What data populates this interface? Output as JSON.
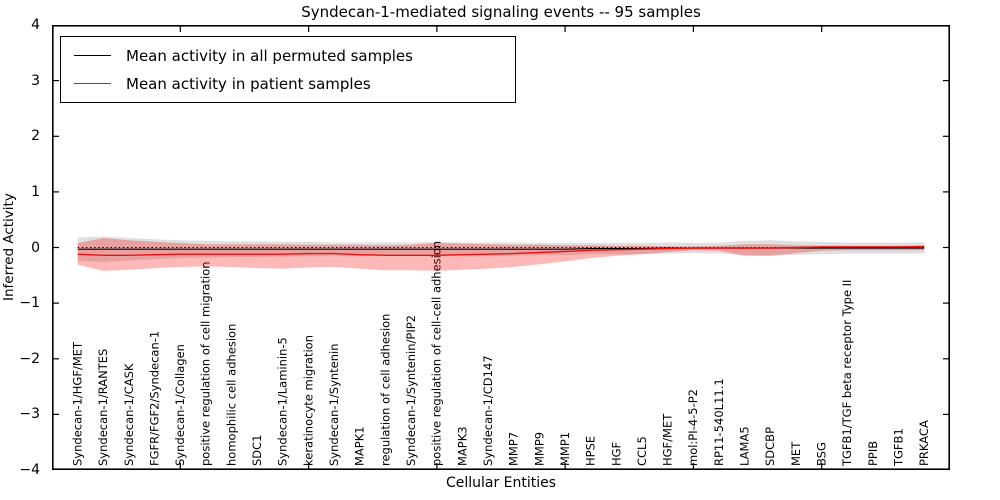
{
  "title": "Syndecan-1-mediated signaling events -- 95 samples",
  "axes": {
    "x_label": "Cellular Entities",
    "y_label": "Inferred Activity",
    "y_ticks": [
      "4",
      "3",
      "2",
      "1",
      "0",
      "−1",
      "−2",
      "−3",
      "−4"
    ]
  },
  "legend": {
    "items": [
      {
        "label": "Mean activity in all permuted samples",
        "color": "#000000"
      },
      {
        "label": "Mean activity in patient samples",
        "color": "#ee1111"
      }
    ]
  },
  "colors": {
    "permuted_line": "#000000",
    "patient_line": "#ee1111",
    "permuted_band": "rgba(0,0,0,0.12)",
    "patient_band": "rgba(255,0,0,0.28)",
    "axis": "#000000"
  },
  "chart_data": {
    "type": "line",
    "title": "Syndecan-1-mediated signaling events -- 95 samples",
    "xlabel": "Cellular Entities",
    "ylabel": "Inferred Activity",
    "ylim": [
      -4,
      4
    ],
    "xlim": [
      0,
      35
    ],
    "grid": false,
    "legend_position": "upper left",
    "zero_reference_line": 0,
    "x_major_tick_step": 5,
    "categories": [
      "Syndecan-1/HGF/MET",
      "Syndecan-1/RANTES",
      "Syndecan-1/CASK",
      "FGFR/FGF2/Syndecan-1",
      "Syndecan-1/Collagen",
      "positive regulation of cell migration",
      "homophilic cell adhesion",
      "SDC1",
      "Syndecan-1/Laminin-5",
      "keratinocyte migration",
      "Syndecan-1/Syntenin",
      "MAPK1",
      "regulation of cell adhesion",
      "Syndecan-1/Syntenin/PIP2",
      "positive regulation of cell-cell adhesion",
      "MAPK3",
      "Syndecan-1/CD147",
      "MMP7",
      "MMP9",
      "MMP1",
      "HPSE",
      "HGF",
      "CCL5",
      "HGF/MET",
      "mol:PI-4-5-P2",
      "RP11-540L11.1",
      "LAMA5",
      "SDCBP",
      "MET",
      "BSG",
      "TGFB1/TGF beta receptor Type II",
      "PPIB",
      "TGFB1",
      "PRKACA"
    ],
    "series": [
      {
        "name": "Mean activity in all permuted samples",
        "color": "#000000",
        "width": 1.1,
        "values": [
          -0.03,
          -0.03,
          -0.03,
          -0.03,
          -0.03,
          -0.03,
          -0.03,
          -0.03,
          -0.03,
          -0.03,
          -0.03,
          -0.03,
          -0.03,
          -0.03,
          -0.03,
          -0.03,
          -0.03,
          -0.03,
          -0.03,
          -0.03,
          -0.02,
          -0.02,
          -0.02,
          -0.01,
          -0.01,
          -0.01,
          -0.01,
          -0.01,
          -0.01,
          -0.01,
          -0.01,
          -0.01,
          -0.01,
          -0.01
        ]
      },
      {
        "name": "Mean activity in patient samples",
        "color": "#ee1111",
        "width": 1.4,
        "values": [
          -0.12,
          -0.14,
          -0.14,
          -0.13,
          -0.12,
          -0.12,
          -0.12,
          -0.12,
          -0.12,
          -0.11,
          -0.11,
          -0.13,
          -0.14,
          -0.14,
          -0.14,
          -0.13,
          -0.12,
          -0.11,
          -0.09,
          -0.07,
          -0.05,
          -0.04,
          -0.03,
          -0.02,
          -0.01,
          -0.01,
          -0.01,
          -0.01,
          0.0,
          0.01,
          0.01,
          0.01,
          0.01,
          0.02
        ]
      }
    ],
    "bands": [
      {
        "name": "permuted-samples-std",
        "color": "rgba(0,0,0,0.12)",
        "upper": [
          0.18,
          0.2,
          0.17,
          0.15,
          0.13,
          0.12,
          0.11,
          0.11,
          0.1,
          0.1,
          0.09,
          0.09,
          0.09,
          0.09,
          0.1,
          0.09,
          0.09,
          0.09,
          0.08,
          0.08,
          0.08,
          0.08,
          0.08,
          0.09,
          0.08,
          0.09,
          0.12,
          0.13,
          0.11,
          0.1,
          0.09,
          0.09,
          0.09,
          0.09
        ],
        "lower": [
          -0.24,
          -0.26,
          -0.23,
          -0.21,
          -0.19,
          -0.18,
          -0.17,
          -0.17,
          -0.16,
          -0.16,
          -0.15,
          -0.15,
          -0.15,
          -0.15,
          -0.16,
          -0.15,
          -0.15,
          -0.15,
          -0.14,
          -0.14,
          -0.12,
          -0.12,
          -0.12,
          -0.11,
          -0.1,
          -0.11,
          -0.14,
          -0.15,
          -0.13,
          -0.12,
          -0.11,
          -0.11,
          -0.11,
          -0.11
        ]
      },
      {
        "name": "patient-samples-std",
        "color": "rgba(255,0,0,0.28)",
        "upper": [
          0.08,
          0.17,
          0.13,
          0.1,
          0.08,
          0.06,
          0.06,
          0.06,
          0.06,
          0.05,
          0.05,
          0.05,
          0.04,
          0.05,
          0.08,
          0.07,
          0.06,
          0.05,
          0.05,
          0.04,
          0.04,
          0.03,
          0.03,
          0.02,
          0.02,
          0.03,
          0.06,
          0.06,
          0.04,
          0.03,
          0.03,
          0.03,
          0.03,
          0.03
        ],
        "lower": [
          -0.31,
          -0.42,
          -0.4,
          -0.37,
          -0.35,
          -0.34,
          -0.35,
          -0.37,
          -0.38,
          -0.36,
          -0.35,
          -0.38,
          -0.41,
          -0.41,
          -0.42,
          -0.4,
          -0.38,
          -0.35,
          -0.3,
          -0.25,
          -0.19,
          -0.15,
          -0.12,
          -0.08,
          -0.05,
          -0.06,
          -0.15,
          -0.15,
          -0.1,
          -0.06,
          -0.05,
          -0.05,
          -0.05,
          -0.05
        ]
      }
    ]
  }
}
